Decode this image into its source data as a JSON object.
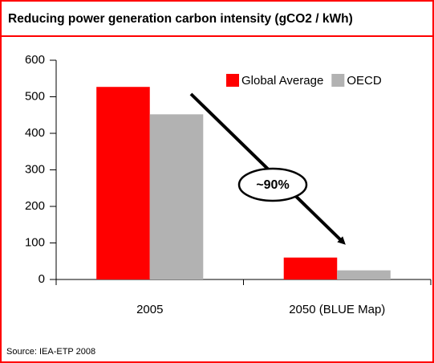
{
  "chart_data": {
    "type": "bar",
    "title": "Reducing power generation carbon intensity (gCO2 / kWh)",
    "categories": [
      "2005",
      "2050 (BLUE Map)"
    ],
    "series": [
      {
        "name": "Global Average",
        "color": "#ff0000",
        "values": [
          527,
          60
        ]
      },
      {
        "name": "OECD",
        "color": "#b2b2b2",
        "values": [
          452,
          25
        ]
      }
    ],
    "ylim": [
      0,
      600
    ],
    "yticks": [
      0,
      100,
      200,
      300,
      400,
      500,
      600
    ],
    "grid": false,
    "legend": "top-right",
    "annotation": "~90%",
    "source": "Source: IEA-ETP 2008"
  }
}
